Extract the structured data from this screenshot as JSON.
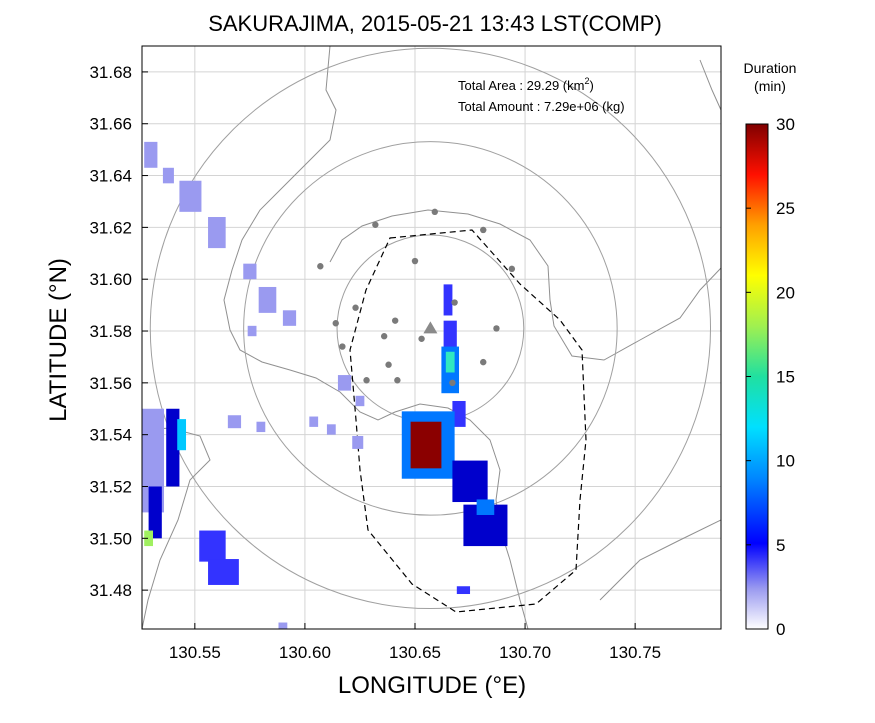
{
  "chart_data": {
    "type": "heatmap",
    "title": "SAKURAJIMA, 2015-05-21 13:43 LST(COMP)",
    "xlabel": "LONGITUDE (°E)",
    "ylabel": "LATITUDE (°N)",
    "xlim": [
      130.526,
      130.789
    ],
    "ylim": [
      31.465,
      31.69
    ],
    "x_ticks": [
      "130.55",
      "130.60",
      "130.65",
      "130.70",
      "130.75"
    ],
    "x_tick_values": [
      130.55,
      130.6,
      130.65,
      130.7,
      130.75
    ],
    "y_ticks": [
      "31.68",
      "31.66",
      "31.64",
      "31.62",
      "31.60",
      "31.58",
      "31.56",
      "31.54",
      "31.52",
      "31.50",
      "31.48"
    ],
    "y_tick_values": [
      31.68,
      31.66,
      31.64,
      31.62,
      31.6,
      31.58,
      31.56,
      31.54,
      31.52,
      31.5,
      31.48
    ],
    "grid": true,
    "info_area_label": "Total Area   : 29.29 (km",
    "info_area_sup": "2",
    "info_area_close": ")",
    "info_amount": "Total Amount : 7.29e+06 (kg)",
    "colorbar": {
      "title_line1": "Duration",
      "title_line2": "(min)",
      "min": 0,
      "max": 30,
      "ticks": [
        "30",
        "25",
        "20",
        "15",
        "10",
        "5",
        "0"
      ],
      "tick_values": [
        30,
        25,
        20,
        15,
        10,
        5,
        0
      ],
      "colors": [
        "#ffffff",
        "#9a9af0",
        "#3333ff",
        "#0000cc",
        "#0077ff",
        "#00c8ff",
        "#30e8c0",
        "#a0f060",
        "#ffff00",
        "#ffa000",
        "#ff2000",
        "#8b0000"
      ]
    },
    "volcano_center": {
      "lon": 130.657,
      "lat": 31.581
    },
    "range_rings_km": [
      4,
      8,
      12
    ],
    "stations": [
      {
        "lon": 130.659,
        "lat": 31.626
      },
      {
        "lon": 130.632,
        "lat": 31.621
      },
      {
        "lon": 130.681,
        "lat": 31.619
      },
      {
        "lon": 130.607,
        "lat": 31.605
      },
      {
        "lon": 130.65,
        "lat": 31.607
      },
      {
        "lon": 130.694,
        "lat": 31.604
      },
      {
        "lon": 130.623,
        "lat": 31.589
      },
      {
        "lon": 130.641,
        "lat": 31.584
      },
      {
        "lon": 130.668,
        "lat": 31.591
      },
      {
        "lon": 130.687,
        "lat": 31.581
      },
      {
        "lon": 130.614,
        "lat": 31.583
      },
      {
        "lon": 130.636,
        "lat": 31.578
      },
      {
        "lon": 130.617,
        "lat": 31.574
      },
      {
        "lon": 130.653,
        "lat": 31.577
      },
      {
        "lon": 130.638,
        "lat": 31.567
      },
      {
        "lon": 130.681,
        "lat": 31.568
      },
      {
        "lon": 130.628,
        "lat": 31.561
      },
      {
        "lon": 130.642,
        "lat": 31.561
      },
      {
        "lon": 130.667,
        "lat": 31.56
      }
    ],
    "deposit_cells": [
      {
        "lon": 130.53,
        "lat": 31.648,
        "w": 0.006,
        "h": 0.01,
        "v": 3
      },
      {
        "lon": 130.538,
        "lat": 31.64,
        "w": 0.005,
        "h": 0.006,
        "v": 3
      },
      {
        "lon": 130.548,
        "lat": 31.632,
        "w": 0.01,
        "h": 0.012,
        "v": 3
      },
      {
        "lon": 130.56,
        "lat": 31.618,
        "w": 0.008,
        "h": 0.012,
        "v": 3
      },
      {
        "lon": 130.575,
        "lat": 31.603,
        "w": 0.006,
        "h": 0.006,
        "v": 3
      },
      {
        "lon": 130.583,
        "lat": 31.592,
        "w": 0.008,
        "h": 0.01,
        "v": 3
      },
      {
        "lon": 130.593,
        "lat": 31.585,
        "w": 0.006,
        "h": 0.006,
        "v": 3
      },
      {
        "lon": 130.576,
        "lat": 31.58,
        "w": 0.004,
        "h": 0.004,
        "v": 3
      },
      {
        "lon": 130.618,
        "lat": 31.56,
        "w": 0.006,
        "h": 0.006,
        "v": 3
      },
      {
        "lon": 130.625,
        "lat": 31.553,
        "w": 0.004,
        "h": 0.004,
        "v": 3
      },
      {
        "lon": 130.568,
        "lat": 31.545,
        "w": 0.006,
        "h": 0.005,
        "v": 3
      },
      {
        "lon": 130.58,
        "lat": 31.543,
        "w": 0.004,
        "h": 0.004,
        "v": 3
      },
      {
        "lon": 130.604,
        "lat": 31.545,
        "w": 0.004,
        "h": 0.004,
        "v": 3
      },
      {
        "lon": 130.612,
        "lat": 31.542,
        "w": 0.004,
        "h": 0.004,
        "v": 3
      },
      {
        "lon": 130.624,
        "lat": 31.537,
        "w": 0.005,
        "h": 0.005,
        "v": 3
      },
      {
        "lon": 130.531,
        "lat": 31.53,
        "w": 0.01,
        "h": 0.04,
        "v": 4
      },
      {
        "lon": 130.54,
        "lat": 31.535,
        "w": 0.006,
        "h": 0.03,
        "v": 9
      },
      {
        "lon": 130.544,
        "lat": 31.54,
        "w": 0.004,
        "h": 0.012,
        "v": 13
      },
      {
        "lon": 130.532,
        "lat": 31.51,
        "w": 0.006,
        "h": 0.02,
        "v": 8
      },
      {
        "lon": 130.529,
        "lat": 31.5,
        "w": 0.004,
        "h": 0.006,
        "v": 18
      },
      {
        "lon": 130.558,
        "lat": 31.497,
        "w": 0.012,
        "h": 0.012,
        "v": 5
      },
      {
        "lon": 130.563,
        "lat": 31.487,
        "w": 0.014,
        "h": 0.01,
        "v": 5
      },
      {
        "lon": 130.59,
        "lat": 31.466,
        "w": 0.004,
        "h": 0.003,
        "v": 3
      },
      {
        "lon": 130.665,
        "lat": 31.592,
        "w": 0.004,
        "h": 0.012,
        "v": 5
      },
      {
        "lon": 130.666,
        "lat": 31.578,
        "w": 0.006,
        "h": 0.012,
        "v": 6
      },
      {
        "lon": 130.666,
        "lat": 31.565,
        "w": 0.008,
        "h": 0.018,
        "v": 10
      },
      {
        "lon": 130.666,
        "lat": 31.568,
        "w": 0.004,
        "h": 0.008,
        "v": 17
      },
      {
        "lon": 130.67,
        "lat": 31.548,
        "w": 0.006,
        "h": 0.01,
        "v": 6
      },
      {
        "lon": 130.656,
        "lat": 31.536,
        "w": 0.024,
        "h": 0.026,
        "v": 10
      },
      {
        "lon": 130.655,
        "lat": 31.536,
        "w": 0.014,
        "h": 0.018,
        "v": 30
      },
      {
        "lon": 130.675,
        "lat": 31.522,
        "w": 0.016,
        "h": 0.016,
        "v": 8
      },
      {
        "lon": 130.682,
        "lat": 31.505,
        "w": 0.02,
        "h": 0.016,
        "v": 7
      },
      {
        "lon": 130.682,
        "lat": 31.512,
        "w": 0.008,
        "h": 0.006,
        "v": 11
      },
      {
        "lon": 130.672,
        "lat": 31.48,
        "w": 0.006,
        "h": 0.003,
        "v": 5
      }
    ]
  }
}
